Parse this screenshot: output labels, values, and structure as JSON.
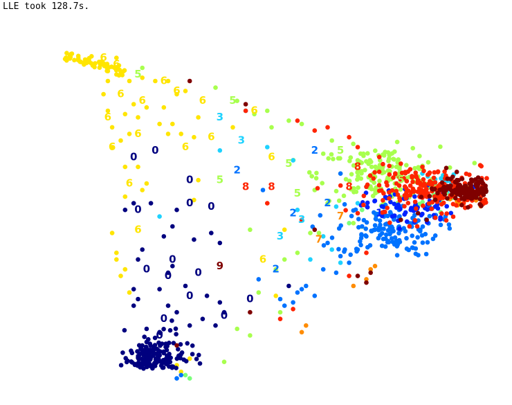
{
  "chart_data": {
    "type": "scatter",
    "title": "LLE took 128.7s.",
    "xlabel": "",
    "ylabel": "",
    "xlim": [
      -0.05,
      1.05
    ],
    "ylim": [
      -0.05,
      1.05
    ],
    "axes": "off",
    "grid": false,
    "legend": "none",
    "colormap": {
      "0": "#00007f",
      "1": "#0022ff",
      "2": "#0072ff",
      "3": "#1ed2ff",
      "4": "#7bff7b",
      "5": "#a8ff4e",
      "6": "#ffe500",
      "7": "#ff8c00",
      "8": "#ff2400",
      "9": "#7f0000"
    },
    "series": [
      {
        "class": "0",
        "cluster": {
          "x": 0.22,
          "y": 0.05,
          "sx": 0.04,
          "sy": 0.05,
          "n": 160
        },
        "points": [
          [
            0.16,
            0.53
          ],
          [
            0.18,
            0.55
          ],
          [
            0.22,
            0.55
          ],
          [
            0.28,
            0.53
          ],
          [
            0.27,
            0.48
          ],
          [
            0.36,
            0.46
          ],
          [
            0.25,
            0.45
          ],
          [
            0.32,
            0.44
          ],
          [
            0.2,
            0.41
          ],
          [
            0.38,
            0.43
          ],
          [
            0.19,
            0.38
          ],
          [
            0.27,
            0.36
          ],
          [
            0.26,
            0.34
          ],
          [
            0.18,
            0.29
          ],
          [
            0.24,
            0.29
          ],
          [
            0.19,
            0.26
          ],
          [
            0.3,
            0.3
          ],
          [
            0.35,
            0.27
          ],
          [
            0.38,
            0.25
          ],
          [
            0.26,
            0.24
          ],
          [
            0.34,
            0.2
          ],
          [
            0.31,
            0.18
          ],
          [
            0.28,
            0.22
          ],
          [
            0.37,
            0.18
          ],
          [
            0.39,
            0.22
          ],
          [
            0.24,
            0.16
          ],
          [
            0.21,
            0.17
          ],
          [
            0.18,
            0.24
          ],
          [
            0.54,
            0.3
          ]
        ]
      },
      {
        "class": "1",
        "cluster": {
          "x": 0.82,
          "y": 0.54,
          "sx": 0.05,
          "sy": 0.03,
          "n": 70
        },
        "points": [
          [
            0.98,
            0.61
          ],
          [
            0.97,
            0.6
          ],
          [
            0.95,
            0.57
          ],
          [
            0.88,
            0.54
          ],
          [
            0.78,
            0.51
          ]
        ]
      },
      {
        "class": "2",
        "cluster": {
          "x": 0.77,
          "y": 0.47,
          "sx": 0.06,
          "sy": 0.04,
          "n": 140
        },
        "points": [
          [
            0.66,
            0.64
          ],
          [
            0.48,
            0.59
          ],
          [
            0.71,
            0.48
          ],
          [
            0.63,
            0.43
          ],
          [
            0.72,
            0.45
          ],
          [
            0.68,
            0.37
          ],
          [
            0.65,
            0.34
          ],
          [
            0.58,
            0.3
          ],
          [
            0.6,
            0.27
          ],
          [
            0.55,
            0.25
          ],
          [
            0.53,
            0.24
          ],
          [
            0.47,
            0.32
          ],
          [
            0.67,
            0.41
          ],
          [
            0.66,
            0.39
          ],
          [
            0.7,
            0.41
          ],
          [
            0.62,
            0.35
          ],
          [
            0.57,
            0.29
          ],
          [
            0.52,
            0.26
          ],
          [
            0.56,
            0.28
          ],
          [
            0.74,
            0.47
          ],
          [
            0.28,
            0.02
          ],
          [
            0.29,
            0.03
          ]
        ]
      },
      {
        "class": "3",
        "cluster": {
          "x": 0.91,
          "y": 0.61,
          "sx": 0.03,
          "sy": 0.02,
          "n": 25
        },
        "points": [
          [
            0.44,
            0.83
          ],
          [
            0.49,
            0.72
          ],
          [
            0.55,
            0.68
          ],
          [
            0.38,
            0.71
          ],
          [
            0.24,
            0.51
          ],
          [
            0.59,
            0.38
          ],
          [
            0.66,
            0.37
          ],
          [
            0.64,
            0.41
          ],
          [
            0.7,
            0.55
          ],
          [
            0.72,
            0.6
          ],
          [
            0.65,
            0.54
          ],
          [
            0.56,
            0.53
          ],
          [
            0.62,
            0.45
          ],
          [
            0.85,
            0.64
          ],
          [
            0.9,
            0.62
          ],
          [
            0.93,
            0.58
          ]
        ]
      },
      {
        "class": "4",
        "cluster": {
          "x": 0.9,
          "y": 0.58,
          "sx": 0.04,
          "sy": 0.02,
          "n": 20
        },
        "points": [
          [
            0.71,
            0.53
          ],
          [
            0.74,
            0.52
          ],
          [
            0.68,
            0.49
          ],
          [
            0.87,
            0.55
          ],
          [
            0.3,
            0.03
          ],
          [
            0.31,
            0.02
          ]
        ]
      },
      {
        "class": "5",
        "cluster": {
          "x": 0.75,
          "y": 0.64,
          "sx": 0.07,
          "sy": 0.04,
          "n": 150
        },
        "points": [
          [
            0.2,
            0.96
          ],
          [
            0.37,
            0.9
          ],
          [
            0.42,
            0.86
          ],
          [
            0.49,
            0.83
          ],
          [
            0.54,
            0.8
          ],
          [
            0.57,
            0.79
          ],
          [
            0.64,
            0.74
          ],
          [
            0.62,
            0.7
          ],
          [
            0.66,
            0.64
          ],
          [
            0.63,
            0.55
          ],
          [
            0.61,
            0.46
          ],
          [
            0.59,
            0.46
          ],
          [
            0.56,
            0.4
          ],
          [
            0.53,
            0.38
          ],
          [
            0.51,
            0.35
          ],
          [
            0.45,
            0.47
          ],
          [
            0.47,
            0.28
          ],
          [
            0.52,
            0.22
          ],
          [
            0.42,
            0.17
          ],
          [
            0.45,
            0.15
          ],
          [
            0.39,
            0.07
          ],
          [
            0.7,
            0.68
          ],
          [
            0.74,
            0.63
          ],
          [
            0.79,
            0.66
          ],
          [
            0.82,
            0.63
          ],
          [
            0.6,
            0.59
          ],
          [
            0.5,
            0.78
          ],
          [
            0.46,
            0.82
          ],
          [
            0.69,
            0.49
          ],
          [
            0.76,
            0.55
          ]
        ]
      },
      {
        "class": "6",
        "cluster": {
          "x": 0.09,
          "y": 1.0,
          "sx": 0.03,
          "sy": 0.015,
          "n": 60
        },
        "points": [
          [
            0.14,
            0.99
          ],
          [
            0.12,
            0.95
          ],
          [
            0.14,
            0.94
          ],
          [
            0.12,
            0.92
          ],
          [
            0.11,
            0.88
          ],
          [
            0.12,
            0.83
          ],
          [
            0.16,
            0.82
          ],
          [
            0.13,
            0.78
          ],
          [
            0.17,
            0.76
          ],
          [
            0.19,
            0.81
          ],
          [
            0.18,
            0.85
          ],
          [
            0.21,
            0.84
          ],
          [
            0.25,
            0.84
          ],
          [
            0.24,
            0.79
          ],
          [
            0.27,
            0.79
          ],
          [
            0.26,
            0.76
          ],
          [
            0.29,
            0.76
          ],
          [
            0.32,
            0.75
          ],
          [
            0.33,
            0.81
          ],
          [
            0.3,
            0.89
          ],
          [
            0.28,
            0.88
          ],
          [
            0.26,
            0.92
          ],
          [
            0.23,
            0.92
          ],
          [
            0.2,
            0.93
          ],
          [
            0.17,
            0.92
          ],
          [
            0.15,
            0.74
          ],
          [
            0.13,
            0.72
          ],
          [
            0.16,
            0.66
          ],
          [
            0.19,
            0.66
          ],
          [
            0.2,
            0.59
          ],
          [
            0.16,
            0.57
          ],
          [
            0.13,
            0.46
          ],
          [
            0.14,
            0.4
          ],
          [
            0.14,
            0.38
          ],
          [
            0.16,
            0.35
          ],
          [
            0.15,
            0.33
          ],
          [
            0.17,
            0.28
          ],
          [
            0.21,
            0.61
          ],
          [
            0.33,
            0.62
          ],
          [
            0.32,
            0.56
          ],
          [
            0.41,
            0.78
          ],
          [
            0.53,
            0.47
          ],
          [
            0.51,
            0.27
          ],
          [
            0.31,
            0.08
          ],
          [
            0.28,
            0.06
          ],
          [
            0.29,
            0.04
          ]
        ]
      },
      {
        "class": "7",
        "cluster": {
          "x": 0.94,
          "y": 0.56,
          "sx": 0.02,
          "sy": 0.02,
          "n": 20
        },
        "points": [
          [
            0.73,
            0.35
          ],
          [
            0.72,
            0.32
          ],
          [
            0.69,
            0.3
          ],
          [
            0.74,
            0.36
          ],
          [
            0.57,
            0.16
          ],
          [
            0.58,
            0.18
          ]
        ]
      },
      {
        "class": "8",
        "cluster": {
          "x": 0.87,
          "y": 0.59,
          "sx": 0.07,
          "sy": 0.035,
          "n": 200
        },
        "points": [
          [
            0.44,
            0.83
          ],
          [
            0.56,
            0.8
          ],
          [
            0.6,
            0.77
          ],
          [
            0.63,
            0.78
          ],
          [
            0.68,
            0.75
          ],
          [
            0.7,
            0.72
          ],
          [
            0.75,
            0.69
          ],
          [
            0.8,
            0.67
          ],
          [
            0.85,
            0.66
          ],
          [
            0.49,
            0.55
          ],
          [
            0.57,
            0.5
          ],
          [
            0.72,
            0.6
          ],
          [
            0.7,
            0.52
          ],
          [
            0.76,
            0.58
          ],
          [
            0.79,
            0.61
          ],
          [
            0.82,
            0.48
          ],
          [
            0.72,
            0.4
          ],
          [
            0.68,
            0.33
          ],
          [
            0.52,
            0.2
          ],
          [
            0.55,
            0.23
          ],
          [
            0.84,
            0.62
          ],
          [
            0.86,
            0.57
          ]
        ]
      },
      {
        "class": "9",
        "cluster": {
          "x": 0.95,
          "y": 0.59,
          "sx": 0.035,
          "sy": 0.02,
          "n": 120
        },
        "points": [
          [
            0.31,
            0.92
          ],
          [
            0.44,
            0.85
          ],
          [
            0.45,
            0.22
          ],
          [
            0.6,
            0.47
          ],
          [
            0.7,
            0.33
          ],
          [
            0.73,
            0.34
          ],
          [
            0.72,
            0.31
          ],
          [
            0.8,
            0.5
          ],
          [
            0.84,
            0.52
          ],
          [
            0.86,
            0.5
          ],
          [
            0.9,
            0.6
          ],
          [
            0.93,
            0.62
          ],
          [
            0.28,
            0.12
          ]
        ]
      }
    ],
    "labels": [
      {
        "text": "6",
        "x": 0.11,
        "y": 0.99
      },
      {
        "text": "6",
        "x": 0.14,
        "y": 0.97
      },
      {
        "text": "5",
        "x": 0.19,
        "y": 0.94
      },
      {
        "text": "6",
        "x": 0.25,
        "y": 0.92
      },
      {
        "text": "6",
        "x": 0.28,
        "y": 0.89
      },
      {
        "text": "6",
        "x": 0.15,
        "y": 0.88
      },
      {
        "text": "6",
        "x": 0.2,
        "y": 0.86
      },
      {
        "text": "6",
        "x": 0.34,
        "y": 0.86
      },
      {
        "text": "5",
        "x": 0.41,
        "y": 0.86
      },
      {
        "text": "6",
        "x": 0.46,
        "y": 0.83
      },
      {
        "text": "6",
        "x": 0.12,
        "y": 0.81
      },
      {
        "text": "3",
        "x": 0.38,
        "y": 0.81
      },
      {
        "text": "6",
        "x": 0.19,
        "y": 0.76
      },
      {
        "text": "6",
        "x": 0.36,
        "y": 0.75
      },
      {
        "text": "3",
        "x": 0.43,
        "y": 0.74
      },
      {
        "text": "6",
        "x": 0.13,
        "y": 0.72
      },
      {
        "text": "6",
        "x": 0.3,
        "y": 0.72
      },
      {
        "text": "2",
        "x": 0.6,
        "y": 0.71
      },
      {
        "text": "0",
        "x": 0.23,
        "y": 0.71
      },
      {
        "text": "0",
        "x": 0.18,
        "y": 0.69
      },
      {
        "text": "6",
        "x": 0.5,
        "y": 0.69
      },
      {
        "text": "5",
        "x": 0.54,
        "y": 0.67
      },
      {
        "text": "2",
        "x": 0.42,
        "y": 0.65
      },
      {
        "text": "5",
        "x": 0.38,
        "y": 0.62
      },
      {
        "text": "0",
        "x": 0.31,
        "y": 0.62
      },
      {
        "text": "8",
        "x": 0.44,
        "y": 0.6
      },
      {
        "text": "8",
        "x": 0.5,
        "y": 0.6
      },
      {
        "text": "6",
        "x": 0.17,
        "y": 0.61
      },
      {
        "text": "5",
        "x": 0.56,
        "y": 0.58
      },
      {
        "text": "0",
        "x": 0.31,
        "y": 0.55
      },
      {
        "text": "0",
        "x": 0.36,
        "y": 0.54
      },
      {
        "text": "0",
        "x": 0.19,
        "y": 0.53
      },
      {
        "text": "2",
        "x": 0.55,
        "y": 0.52
      },
      {
        "text": "2",
        "x": 0.63,
        "y": 0.55
      },
      {
        "text": "3",
        "x": 0.57,
        "y": 0.5
      },
      {
        "text": "3",
        "x": 0.52,
        "y": 0.45
      },
      {
        "text": "6",
        "x": 0.19,
        "y": 0.47
      },
      {
        "text": "7",
        "x": 0.66,
        "y": 0.51
      },
      {
        "text": "7",
        "x": 0.61,
        "y": 0.44
      },
      {
        "text": "0",
        "x": 0.27,
        "y": 0.38
      },
      {
        "text": "0",
        "x": 0.21,
        "y": 0.35
      },
      {
        "text": "0",
        "x": 0.26,
        "y": 0.33
      },
      {
        "text": "0",
        "x": 0.33,
        "y": 0.34
      },
      {
        "text": "9",
        "x": 0.38,
        "y": 0.36
      },
      {
        "text": "6",
        "x": 0.48,
        "y": 0.38
      },
      {
        "text": "2",
        "x": 0.51,
        "y": 0.35
      },
      {
        "text": "0",
        "x": 0.31,
        "y": 0.27
      },
      {
        "text": "0",
        "x": 0.45,
        "y": 0.26
      },
      {
        "text": "0",
        "x": 0.39,
        "y": 0.21
      },
      {
        "text": "0",
        "x": 0.25,
        "y": 0.2
      },
      {
        "text": "0",
        "x": 0.24,
        "y": 0.15
      },
      {
        "text": "1",
        "x": 0.75,
        "y": 0.52
      },
      {
        "text": "8",
        "x": 0.7,
        "y": 0.66
      },
      {
        "text": "5",
        "x": 0.66,
        "y": 0.71
      },
      {
        "text": "5",
        "x": 0.8,
        "y": 0.62
      },
      {
        "text": "8",
        "x": 0.68,
        "y": 0.6
      }
    ]
  }
}
